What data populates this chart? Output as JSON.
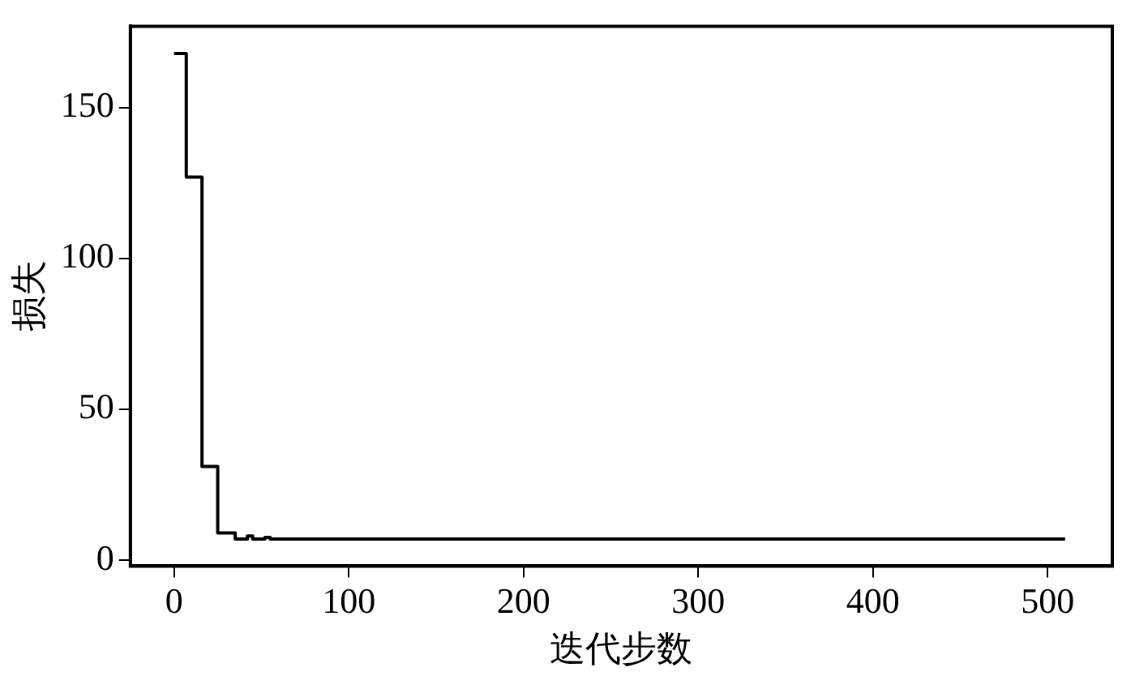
{
  "chart_data": {
    "type": "step",
    "xlabel": "迭代步数",
    "ylabel": "损失",
    "x": [
      0,
      7,
      16,
      25,
      35,
      40,
      42,
      45,
      50,
      52,
      55,
      510
    ],
    "series": [
      {
        "color": "#000000",
        "values": [
          168,
          127,
          31,
          9,
          7,
          7,
          8,
          7,
          7,
          7.5,
          7,
          7
        ]
      }
    ],
    "xlim": [
      -25,
      537
    ],
    "xticks": [
      0,
      100,
      200,
      300,
      400,
      500
    ],
    "ylim": [
      -2,
      177
    ],
    "yticks": [
      0,
      50,
      100,
      150
    ],
    "grid": false,
    "legend": false,
    "marker": "none",
    "line_style": "solid"
  }
}
